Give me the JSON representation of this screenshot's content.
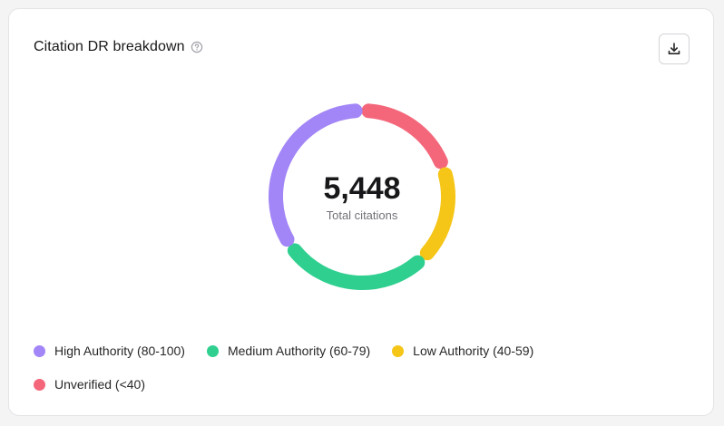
{
  "card": {
    "title": "Citation DR breakdown",
    "help_icon": "question-circle-icon",
    "download_icon": "download-icon"
  },
  "colors": {
    "high": "#a285f6",
    "medium": "#2fcf8f",
    "low": "#f5c518",
    "unverified": "#f4677b"
  },
  "chart_data": {
    "type": "pie",
    "variant": "donut",
    "center_value": "5,448",
    "center_label": "Total citations",
    "categories": [
      "High Authority (80-100)",
      "Medium Authority (60-79)",
      "Low Authority (40-59)",
      "Unverified (<40)"
    ],
    "values": [
      1880,
      1520,
      980,
      1068
    ],
    "colors": [
      "#a285f6",
      "#2fcf8f",
      "#f5c518",
      "#f4677b"
    ],
    "legend_position": "bottom-left"
  },
  "legend": [
    {
      "label": "High Authority (80-100)",
      "color": "#a285f6"
    },
    {
      "label": "Medium Authority (60-79)",
      "color": "#2fcf8f"
    },
    {
      "label": "Low Authority (40-59)",
      "color": "#f5c518"
    },
    {
      "label": "Unverified (<40)",
      "color": "#f4677b"
    }
  ]
}
